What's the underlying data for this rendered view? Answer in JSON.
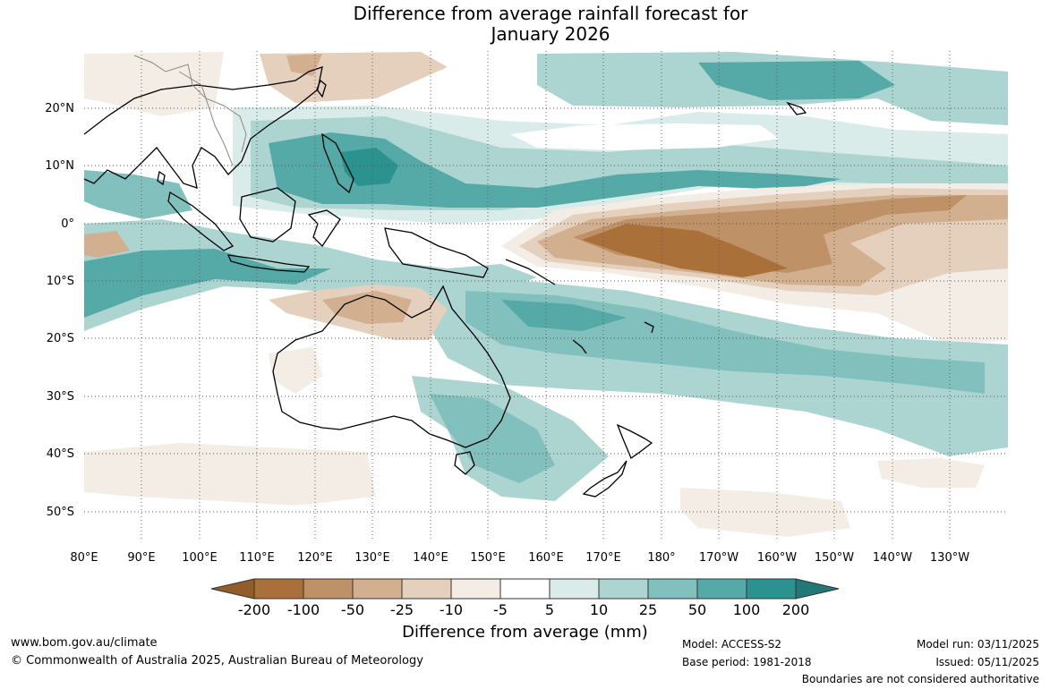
{
  "title": {
    "line1": "Difference from average rainfall forecast for",
    "line2": "January 2026"
  },
  "map": {
    "lat_labels": [
      "20°N",
      "10°N",
      "0°",
      "10°S",
      "20°S",
      "30°S",
      "40°S",
      "50°S"
    ],
    "lon_labels": [
      "80°E",
      "90°E",
      "100°E",
      "110°E",
      "120°E",
      "130°E",
      "140°E",
      "150°E",
      "160°E",
      "170°E",
      "180°",
      "170°W",
      "160°W",
      "150°W",
      "140°W",
      "130°W"
    ]
  },
  "colorbar": {
    "labels": [
      "-200",
      "-100",
      "-50",
      "-25",
      "-10",
      "-5",
      "5",
      "10",
      "25",
      "50",
      "100",
      "200"
    ],
    "colors": [
      "#aa7039",
      "#bf9166",
      "#d2b08f",
      "#e4d0bd",
      "#f3ede6",
      "#ffffff",
      "#d9ecea",
      "#acd5d2",
      "#81c0bd",
      "#55aaa8",
      "#2b928f"
    ],
    "under_color": "#925c2b",
    "over_color": "#227876",
    "title": "Difference from average (mm)"
  },
  "footer": {
    "url": "www.bom.gov.au/climate",
    "copyright": "© Commonwealth of Australia 2025, Australian Bureau of Meteorology",
    "model": "Model: ACCESS-S2",
    "base_period": "Base period: 1981-2018",
    "model_run": "Model run: 03/11/2025",
    "issued": "Issued: 05/11/2025",
    "disclaimer": "Boundaries are not considered authoritative"
  }
}
